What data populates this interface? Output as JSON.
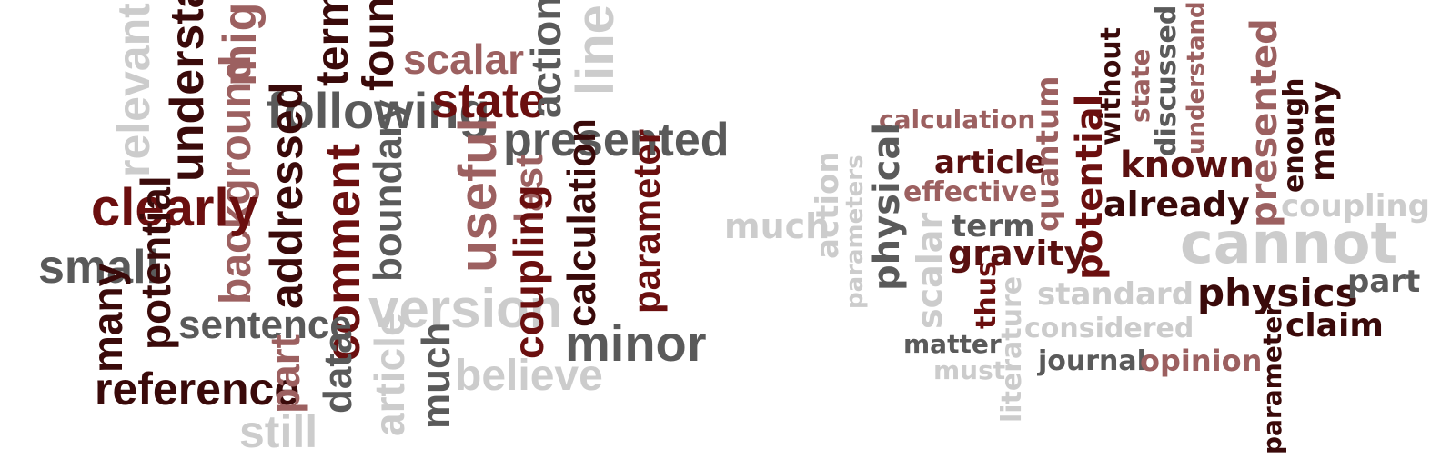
{
  "palette": {
    "dark-red": "#6b0f0f",
    "darkest-red": "#3a0a0a",
    "maroon": "#5a1010",
    "dusty-rose": "#9c6060",
    "dark-gray": "#5a5a5a",
    "light-gray": "#cccccc"
  },
  "clouds": [
    {
      "id": "left-word-cloud",
      "words": [
        {
          "text": "relevant",
          "color": "light-gray"
        },
        {
          "text": "understand",
          "color": "darkest-red"
        },
        {
          "text": "might",
          "color": "dusty-rose"
        },
        {
          "text": "term",
          "color": "darkest-red"
        },
        {
          "text": "found",
          "color": "darkest-red"
        },
        {
          "text": "scalar",
          "color": "dusty-rose"
        },
        {
          "text": "line",
          "color": "light-gray"
        },
        {
          "text": "following",
          "color": "dark-gray"
        },
        {
          "text": "state",
          "color": "dark-red"
        },
        {
          "text": "action",
          "color": "dark-gray"
        },
        {
          "text": "presented",
          "color": "dark-gray"
        },
        {
          "text": "background",
          "color": "dusty-rose"
        },
        {
          "text": "clearly",
          "color": "dark-red"
        },
        {
          "text": "small",
          "color": "dark-gray"
        },
        {
          "text": "potential",
          "color": "darkest-red"
        },
        {
          "text": "addressed",
          "color": "darkest-red"
        },
        {
          "text": "comment",
          "color": "dark-red"
        },
        {
          "text": "boundary",
          "color": "dark-gray"
        },
        {
          "text": "useful",
          "color": "dusty-rose"
        },
        {
          "text": "last",
          "color": "dusty-rose"
        },
        {
          "text": "calculation",
          "color": "darkest-red"
        },
        {
          "text": "parameter",
          "color": "dark-red"
        },
        {
          "text": "many",
          "color": "darkest-red"
        },
        {
          "text": "sentence",
          "color": "dark-gray"
        },
        {
          "text": "version",
          "color": "light-gray"
        },
        {
          "text": "coupling",
          "color": "dark-red"
        },
        {
          "text": "minor",
          "color": "dark-gray"
        },
        {
          "text": "reference",
          "color": "darkest-red"
        },
        {
          "text": "part",
          "color": "dusty-rose"
        },
        {
          "text": "data",
          "color": "dark-gray"
        },
        {
          "text": "article",
          "color": "light-gray"
        },
        {
          "text": "much",
          "color": "dark-gray"
        },
        {
          "text": "believe",
          "color": "light-gray"
        },
        {
          "text": "still",
          "color": "light-gray"
        }
      ]
    },
    {
      "id": "right-word-cloud",
      "words": [
        {
          "text": "calculation",
          "color": "dusty-rose"
        },
        {
          "text": "without",
          "color": "darkest-red"
        },
        {
          "text": "state",
          "color": "dusty-rose"
        },
        {
          "text": "discussed",
          "color": "dark-gray"
        },
        {
          "text": "understand",
          "color": "dusty-rose"
        },
        {
          "text": "physical",
          "color": "dark-gray"
        },
        {
          "text": "article",
          "color": "maroon"
        },
        {
          "text": "quantum",
          "color": "dusty-rose"
        },
        {
          "text": "potential",
          "color": "dark-red"
        },
        {
          "text": "known",
          "color": "maroon"
        },
        {
          "text": "presented",
          "color": "dusty-rose"
        },
        {
          "text": "enough",
          "color": "darkest-red"
        },
        {
          "text": "many",
          "color": "darkest-red"
        },
        {
          "text": "action",
          "color": "light-gray"
        },
        {
          "text": "parameters",
          "color": "light-gray"
        },
        {
          "text": "effective",
          "color": "dusty-rose"
        },
        {
          "text": "already",
          "color": "darkest-red"
        },
        {
          "text": "coupling",
          "color": "light-gray"
        },
        {
          "text": "much",
          "color": "light-gray"
        },
        {
          "text": "term",
          "color": "dark-gray"
        },
        {
          "text": "scalar",
          "color": "light-gray"
        },
        {
          "text": "gravity",
          "color": "maroon"
        },
        {
          "text": "cannot",
          "color": "light-gray"
        },
        {
          "text": "thus",
          "color": "dark-red"
        },
        {
          "text": "literature",
          "color": "light-gray"
        },
        {
          "text": "standard",
          "color": "light-gray"
        },
        {
          "text": "physics",
          "color": "darkest-red"
        },
        {
          "text": "part",
          "color": "dark-gray"
        },
        {
          "text": "claim",
          "color": "darkest-red"
        },
        {
          "text": "considered",
          "color": "light-gray"
        },
        {
          "text": "matter",
          "color": "dark-gray"
        },
        {
          "text": "must",
          "color": "light-gray"
        },
        {
          "text": "journal",
          "color": "dark-gray"
        },
        {
          "text": "opinion",
          "color": "dusty-rose"
        },
        {
          "text": "parameter",
          "color": "darkest-red"
        }
      ]
    }
  ]
}
